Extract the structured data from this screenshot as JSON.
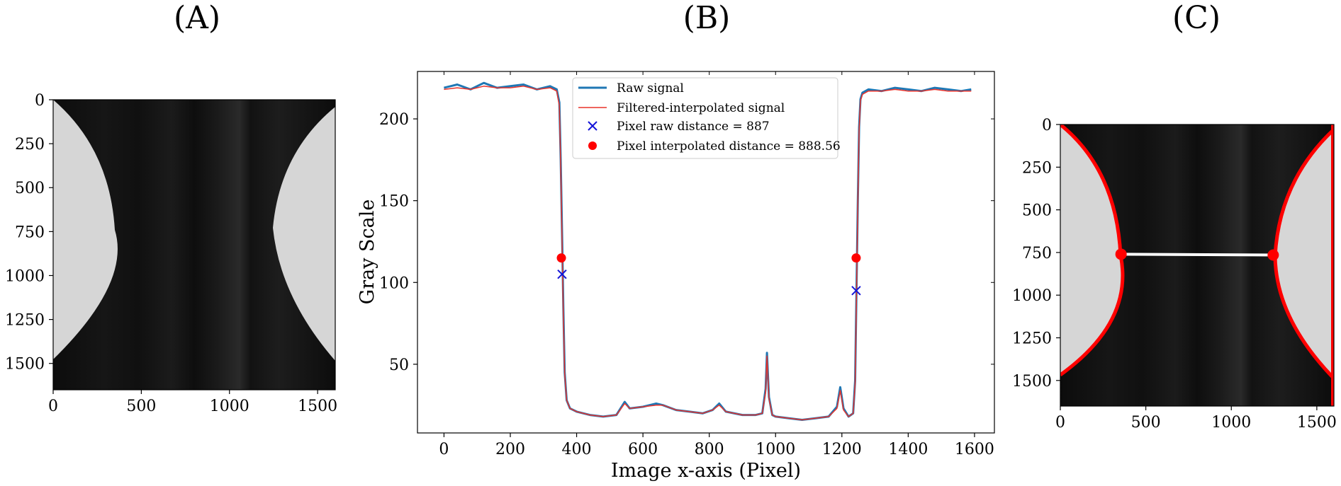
{
  "panels": {
    "a": {
      "title": "(A)"
    },
    "b": {
      "title": "(B)"
    },
    "c": {
      "title": "(C)"
    }
  },
  "chart_data": [
    {
      "panel": "(A)",
      "type": "image",
      "xlim": [
        0,
        1600
      ],
      "ylim": [
        1650,
        0
      ],
      "xticks": [
        0,
        500,
        1000,
        1500
      ],
      "yticks": [
        0,
        250,
        500,
        750,
        1000,
        1250,
        1500
      ],
      "overlay": false
    },
    {
      "panel": "(B)",
      "type": "line",
      "title": "",
      "xlabel": "Image x-axis (Pixel)",
      "ylabel": "Gray Scale",
      "xlim": [
        -80,
        1660
      ],
      "ylim": [
        8,
        229
      ],
      "xticks": [
        0,
        200,
        400,
        600,
        800,
        1000,
        1200,
        1400,
        1600
      ],
      "yticks": [
        50,
        100,
        150,
        200
      ],
      "legend_position": "top-center",
      "series": [
        {
          "name": "Raw signal",
          "style": "line",
          "color": "#1f77b4",
          "x": [
            0,
            40,
            80,
            120,
            160,
            200,
            240,
            280,
            320,
            340,
            348,
            352,
            356,
            360,
            364,
            370,
            380,
            400,
            440,
            480,
            520,
            545,
            560,
            600,
            640,
            660,
            700,
            740,
            780,
            810,
            830,
            850,
            900,
            940,
            960,
            970,
            974,
            980,
            990,
            1000,
            1040,
            1080,
            1120,
            1160,
            1185,
            1195,
            1205,
            1220,
            1234,
            1240,
            1244,
            1248,
            1252,
            1256,
            1262,
            1280,
            1320,
            1360,
            1400,
            1440,
            1480,
            1520,
            1560,
            1590
          ],
          "y": [
            219,
            221,
            218,
            222,
            219,
            220,
            221,
            218,
            220,
            218,
            210,
            175,
            130,
            85,
            45,
            28,
            23,
            21,
            19,
            18,
            19,
            27,
            23,
            24,
            26,
            25,
            22,
            21,
            20,
            22,
            26,
            21,
            19,
            19,
            20,
            35,
            57,
            30,
            19,
            18,
            17,
            16,
            17,
            18,
            24,
            36,
            23,
            18,
            20,
            40,
            95,
            150,
            195,
            212,
            216,
            218,
            217,
            219,
            218,
            217,
            219,
            218,
            217,
            218
          ]
        },
        {
          "name": "Filtered-interpolated signal",
          "style": "line",
          "color": "#e8322a",
          "x": [
            0,
            40,
            80,
            120,
            160,
            200,
            240,
            280,
            320,
            340,
            348,
            352,
            356,
            360,
            364,
            370,
            380,
            400,
            440,
            480,
            520,
            545,
            560,
            600,
            640,
            660,
            700,
            740,
            780,
            810,
            830,
            850,
            900,
            940,
            960,
            970,
            974,
            980,
            990,
            1000,
            1040,
            1080,
            1120,
            1160,
            1185,
            1195,
            1205,
            1220,
            1234,
            1240,
            1244,
            1248,
            1252,
            1256,
            1262,
            1280,
            1320,
            1360,
            1400,
            1440,
            1480,
            1520,
            1560,
            1590
          ],
          "y": [
            218,
            219,
            218,
            220,
            219,
            219,
            220,
            218,
            219,
            217,
            208,
            172,
            125,
            80,
            44,
            28,
            23,
            21,
            19,
            18,
            19,
            26,
            23,
            24,
            25,
            25,
            22,
            21,
            20,
            22,
            25,
            21,
            19,
            19,
            20,
            33,
            55,
            29,
            19,
            18,
            17,
            16,
            17,
            18,
            23,
            34,
            22,
            18,
            20,
            38,
            92,
            148,
            193,
            211,
            215,
            217,
            217,
            218,
            217,
            217,
            218,
            217,
            217,
            217
          ]
        },
        {
          "name": "Pixel raw distance = 887",
          "style": "marker-x",
          "color": "#1414d8",
          "points": [
            [
              356,
              105
            ],
            [
              1243,
              95
            ]
          ]
        },
        {
          "name": "Pixel interpolated distance = 888.56",
          "style": "marker-dot",
          "color": "#ff0000",
          "points": [
            [
              354,
              115
            ],
            [
              1243,
              115
            ]
          ]
        }
      ]
    },
    {
      "panel": "(C)",
      "type": "image",
      "xlim": [
        0,
        1600
      ],
      "ylim": [
        1650,
        0
      ],
      "xticks": [
        0,
        500,
        1000,
        1500
      ],
      "yticks": [
        0,
        250,
        500,
        750,
        1000,
        1250,
        1500
      ],
      "overlay": true,
      "overlay_color": "#ff0000",
      "measure_points": [
        [
          355,
          760
        ],
        [
          1245,
          765
        ]
      ]
    }
  ]
}
